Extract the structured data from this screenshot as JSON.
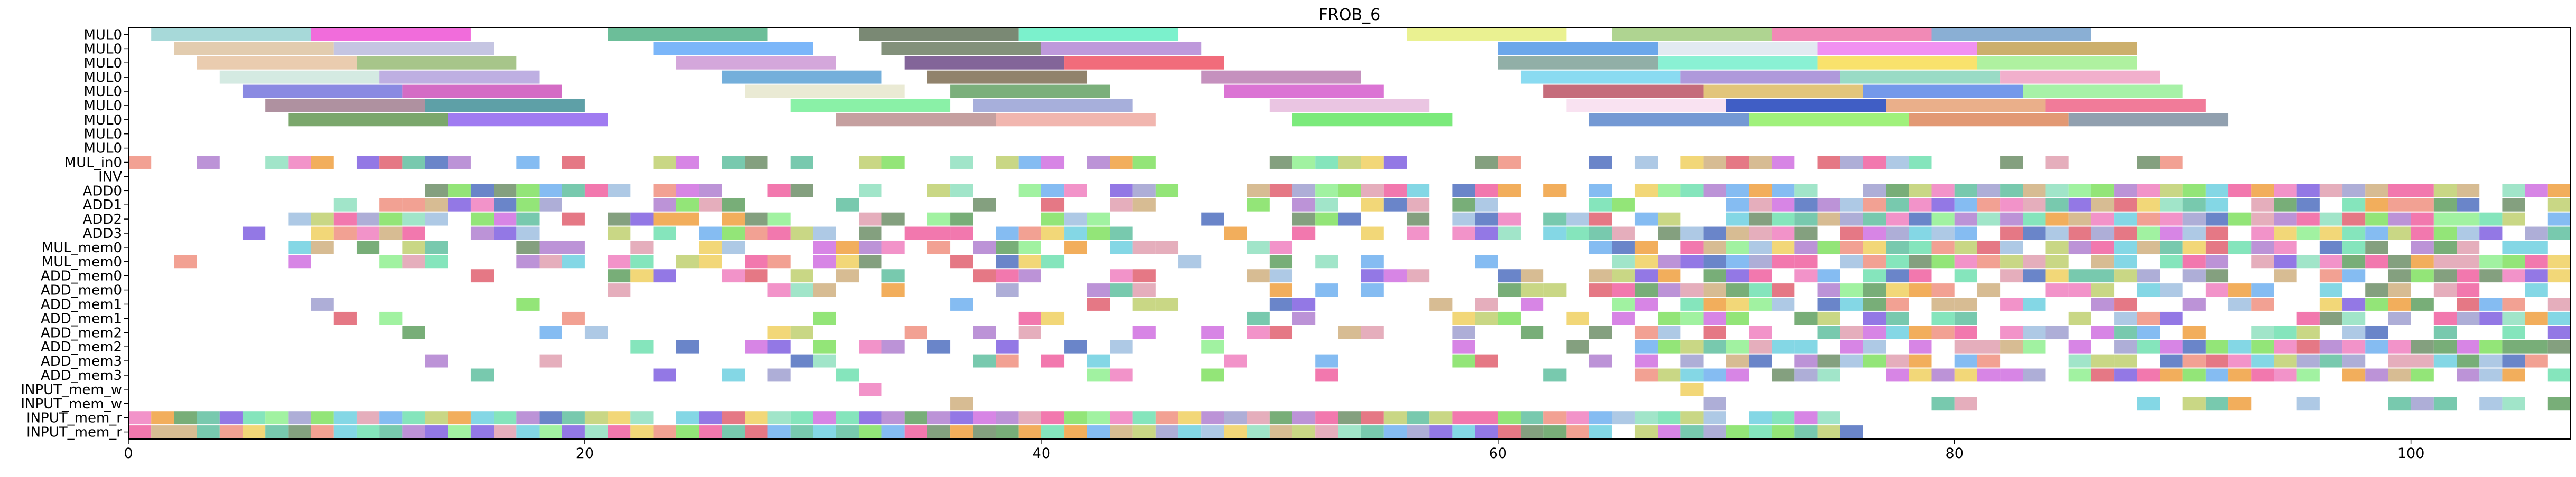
{
  "chart_data": {
    "type": "gantt",
    "title": "FROB_6",
    "xlabel": "",
    "ylabel": "",
    "xlim": [
      0,
      107
    ],
    "x_ticks": [
      0,
      20,
      40,
      60,
      80,
      100
    ],
    "grid": false,
    "legend": "none",
    "rows": [
      "MUL0",
      "MUL0",
      "MUL0",
      "MUL0",
      "MUL0",
      "MUL0",
      "MUL0",
      "MUL0",
      "MUL0",
      "MUL_in0",
      "INV",
      "ADD0",
      "ADD1",
      "ADD2",
      "ADD3",
      "MUL_mem0",
      "MUL_mem0",
      "ADD_mem0",
      "ADD_mem0",
      "ADD_mem1",
      "ADD_mem1",
      "ADD_mem2",
      "ADD_mem2",
      "ADD_mem3",
      "ADD_mem3",
      "INPUT_mem_w",
      "INPUT_mem_w",
      "INPUT_mem_r",
      "INPUT_mem_r"
    ],
    "long_tasks": [
      {
        "row": 0,
        "start": 1,
        "end": 8,
        "color": "#9fd6d6"
      },
      {
        "row": 0,
        "start": 8,
        "end": 15,
        "color": "#f060d8"
      },
      {
        "row": 0,
        "start": 21,
        "end": 28,
        "color": "#60b890"
      },
      {
        "row": 0,
        "start": 32,
        "end": 39,
        "color": "#6f7f68"
      },
      {
        "row": 0,
        "start": 39,
        "end": 46,
        "color": "#70f0c8"
      },
      {
        "row": 0,
        "start": 56,
        "end": 63,
        "color": "#e8f088"
      },
      {
        "row": 0,
        "start": 65,
        "end": 72,
        "color": "#a8d088"
      },
      {
        "row": 0,
        "start": 72,
        "end": 79,
        "color": "#f080b0"
      },
      {
        "row": 0,
        "start": 79,
        "end": 86,
        "color": "#80a8d0"
      },
      {
        "row": 1,
        "start": 2,
        "end": 9,
        "color": "#e0c8a8"
      },
      {
        "row": 1,
        "start": 9,
        "end": 16,
        "color": "#c0c0e0"
      },
      {
        "row": 1,
        "start": 23,
        "end": 30,
        "color": "#70b0f8"
      },
      {
        "row": 1,
        "start": 33,
        "end": 40,
        "color": "#788870"
      },
      {
        "row": 1,
        "start": 40,
        "end": 47,
        "color": "#b890d8"
      },
      {
        "row": 1,
        "start": 60,
        "end": 67,
        "color": "#60a0e8"
      },
      {
        "row": 1,
        "start": 67,
        "end": 74,
        "color": "#e0e8f0"
      },
      {
        "row": 1,
        "start": 74,
        "end": 81,
        "color": "#f088f0"
      },
      {
        "row": 1,
        "start": 81,
        "end": 88,
        "color": "#c8a860"
      },
      {
        "row": 2,
        "start": 3,
        "end": 10,
        "color": "#e8c8a8"
      },
      {
        "row": 2,
        "start": 10,
        "end": 17,
        "color": "#a0c080"
      },
      {
        "row": 2,
        "start": 24,
        "end": 31,
        "color": "#d0a0d8"
      },
      {
        "row": 2,
        "start": 34,
        "end": 41,
        "color": "#785890"
      },
      {
        "row": 2,
        "start": 41,
        "end": 48,
        "color": "#f06070"
      },
      {
        "row": 2,
        "start": 60,
        "end": 67,
        "color": "#88a8a0"
      },
      {
        "row": 2,
        "start": 67,
        "end": 74,
        "color": "#80f0d0"
      },
      {
        "row": 2,
        "start": 74,
        "end": 81,
        "color": "#f8e060"
      },
      {
        "row": 2,
        "start": 81,
        "end": 88,
        "color": "#a8f098"
      },
      {
        "row": 3,
        "start": 4,
        "end": 11,
        "color": "#d0e8e0"
      },
      {
        "row": 3,
        "start": 11,
        "end": 18,
        "color": "#b8a8e0"
      },
      {
        "row": 3,
        "start": 26,
        "end": 33,
        "color": "#68a8d8"
      },
      {
        "row": 3,
        "start": 35,
        "end": 42,
        "color": "#887860"
      },
      {
        "row": 3,
        "start": 47,
        "end": 54,
        "color": "#c088b8"
      },
      {
        "row": 3,
        "start": 61,
        "end": 68,
        "color": "#80d8f0"
      },
      {
        "row": 3,
        "start": 68,
        "end": 75,
        "color": "#a890d8"
      },
      {
        "row": 3,
        "start": 75,
        "end": 82,
        "color": "#90d8c0"
      },
      {
        "row": 3,
        "start": 82,
        "end": 89,
        "color": "#f0a8c8"
      },
      {
        "row": 4,
        "start": 5,
        "end": 12,
        "color": "#8080e0"
      },
      {
        "row": 4,
        "start": 12,
        "end": 19,
        "color": "#d060c0"
      },
      {
        "row": 4,
        "start": 27,
        "end": 34,
        "color": "#e8e8d0"
      },
      {
        "row": 4,
        "start": 36,
        "end": 43,
        "color": "#70a870"
      },
      {
        "row": 4,
        "start": 48,
        "end": 55,
        "color": "#d868d0"
      },
      {
        "row": 4,
        "start": 62,
        "end": 69,
        "color": "#c06070"
      },
      {
        "row": 4,
        "start": 69,
        "end": 76,
        "color": "#e0c070"
      },
      {
        "row": 4,
        "start": 76,
        "end": 83,
        "color": "#6890e8"
      },
      {
        "row": 4,
        "start": 83,
        "end": 90,
        "color": "#a0f0a0"
      },
      {
        "row": 5,
        "start": 6,
        "end": 13,
        "color": "#a88898"
      },
      {
        "row": 5,
        "start": 13,
        "end": 20,
        "color": "#5098a0"
      },
      {
        "row": 5,
        "start": 29,
        "end": 36,
        "color": "#80f0a0"
      },
      {
        "row": 5,
        "start": 37,
        "end": 44,
        "color": "#a0a8d8"
      },
      {
        "row": 5,
        "start": 50,
        "end": 57,
        "color": "#e8c0e0"
      },
      {
        "row": 5,
        "start": 63,
        "end": 70,
        "color": "#f8e0f0"
      },
      {
        "row": 5,
        "start": 70,
        "end": 77,
        "color": "#3050c0"
      },
      {
        "row": 5,
        "start": 77,
        "end": 84,
        "color": "#e8a880"
      },
      {
        "row": 5,
        "start": 84,
        "end": 91,
        "color": "#f07090"
      },
      {
        "row": 6,
        "start": 7,
        "end": 14,
        "color": "#70a060"
      },
      {
        "row": 6,
        "start": 14,
        "end": 21,
        "color": "#9870f0"
      },
      {
        "row": 6,
        "start": 31,
        "end": 38,
        "color": "#c09898"
      },
      {
        "row": 6,
        "start": 38,
        "end": 45,
        "color": "#f0b0a8"
      },
      {
        "row": 6,
        "start": 51,
        "end": 58,
        "color": "#70e870"
      },
      {
        "row": 6,
        "start": 64,
        "end": 71,
        "color": "#6890d0"
      },
      {
        "row": 6,
        "start": 71,
        "end": 78,
        "color": "#98f070"
      },
      {
        "row": 6,
        "start": 78,
        "end": 85,
        "color": "#e09068"
      },
      {
        "row": 6,
        "start": 85,
        "end": 92,
        "color": "#8898a8"
      }
    ],
    "short_task_rule": "unit-length tasks: rows 9-28, occupancy derived from a fixed pseudo-random pattern over x in [0, 107]"
  }
}
